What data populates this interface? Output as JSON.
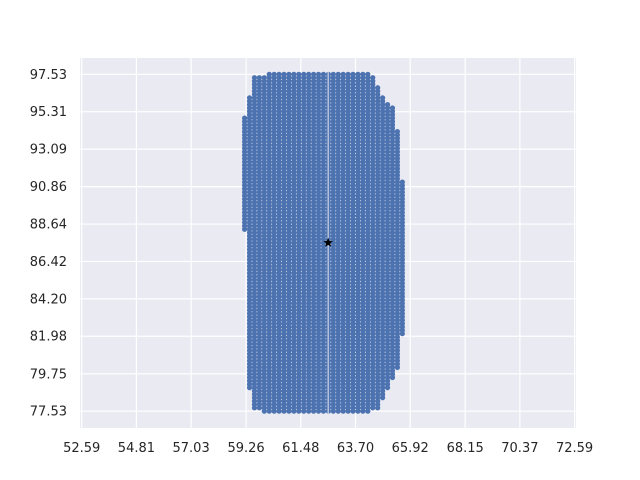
{
  "chart_data": {
    "type": "scatter",
    "title": "",
    "xlabel": "",
    "ylabel": "",
    "xlim": [
      52.59,
      72.59
    ],
    "ylim": [
      76.42,
      98.64
    ],
    "xticks": [
      "52.59",
      "54.81",
      "57.03",
      "59.26",
      "61.48",
      "63.70",
      "65.92",
      "68.15",
      "70.37",
      "72.59"
    ],
    "yticks": [
      "77.53",
      "79.75",
      "81.98",
      "84.20",
      "86.42",
      "88.64",
      "90.86",
      "93.09",
      "95.31",
      "97.53"
    ],
    "grid": true,
    "legend": "none",
    "series": [
      {
        "marker": "dot",
        "color": "#4c72b0",
        "point_spacing": 0.2,
        "rows": [
          {
            "y": 77.53,
            "x_min": 60.0,
            "x_max": 64.2
          },
          {
            "y": 77.73,
            "x_min": 59.6,
            "x_max": 64.6
          },
          {
            "y": 77.93,
            "x_min": 59.6,
            "x_max": 64.6
          },
          {
            "y": 78.13,
            "x_min": 59.6,
            "x_max": 64.6
          },
          {
            "y": 78.33,
            "x_min": 59.6,
            "x_max": 64.8
          },
          {
            "y": 78.53,
            "x_min": 59.6,
            "x_max": 64.8
          },
          {
            "y": 78.73,
            "x_min": 59.6,
            "x_max": 64.8
          },
          {
            "y": 78.93,
            "x_min": 59.4,
            "x_max": 65.0
          },
          {
            "y": 79.13,
            "x_min": 59.4,
            "x_max": 65.0
          },
          {
            "y": 79.33,
            "x_min": 59.4,
            "x_max": 65.0
          },
          {
            "y": 79.53,
            "x_min": 59.4,
            "x_max": 65.2
          },
          {
            "y": 79.73,
            "x_min": 59.4,
            "x_max": 65.2
          },
          {
            "y": 79.93,
            "x_min": 59.4,
            "x_max": 65.2
          },
          {
            "y": 80.13,
            "x_min": 59.4,
            "x_max": 65.4
          },
          {
            "y": 81.93,
            "x_min": 59.4,
            "x_max": 65.4
          },
          {
            "y": 82.13,
            "x_min": 59.4,
            "x_max": 65.6
          },
          {
            "y": 88.13,
            "x_min": 59.4,
            "x_max": 65.6
          },
          {
            "y": 88.33,
            "x_min": 59.2,
            "x_max": 65.6
          },
          {
            "y": 91.13,
            "x_min": 59.2,
            "x_max": 65.6
          },
          {
            "y": 91.33,
            "x_min": 59.2,
            "x_max": 65.4
          },
          {
            "y": 94.13,
            "x_min": 59.2,
            "x_max": 65.4
          },
          {
            "y": 94.33,
            "x_min": 59.2,
            "x_max": 65.2
          },
          {
            "y": 94.93,
            "x_min": 59.2,
            "x_max": 65.2
          },
          {
            "y": 95.13,
            "x_min": 59.4,
            "x_max": 65.2
          },
          {
            "y": 95.53,
            "x_min": 59.4,
            "x_max": 65.2
          },
          {
            "y": 95.73,
            "x_min": 59.4,
            "x_max": 65.0
          },
          {
            "y": 95.93,
            "x_min": 59.4,
            "x_max": 64.8
          },
          {
            "y": 96.13,
            "x_min": 59.4,
            "x_max": 64.8
          },
          {
            "y": 96.33,
            "x_min": 59.6,
            "x_max": 64.6
          },
          {
            "y": 96.53,
            "x_min": 59.6,
            "x_max": 64.6
          },
          {
            "y": 96.73,
            "x_min": 59.6,
            "x_max": 64.6
          },
          {
            "y": 96.93,
            "x_min": 59.6,
            "x_max": 64.4
          },
          {
            "y": 97.13,
            "x_min": 59.6,
            "x_max": 64.4
          },
          {
            "y": 97.33,
            "x_min": 59.6,
            "x_max": 64.4
          },
          {
            "y": 97.53,
            "x_min": 60.2,
            "x_max": 64.2
          }
        ]
      },
      {
        "marker": "star",
        "color": "#000000",
        "points": [
          {
            "x": 62.59,
            "y": 87.53
          }
        ]
      }
    ]
  }
}
